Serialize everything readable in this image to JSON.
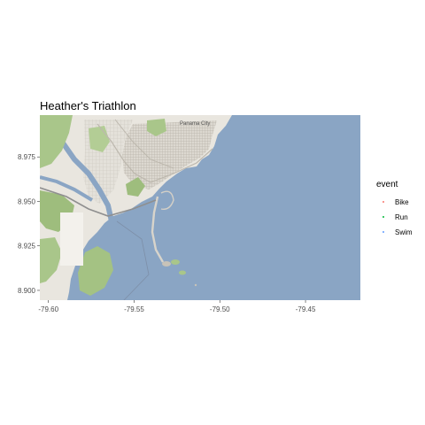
{
  "title": "Heather's Triathlon",
  "map": {
    "place_label": "Panama City",
    "water_color": "#8aa5c4",
    "land_color": "#e9e6df",
    "park_color": "#a9c68a"
  },
  "axes": {
    "x_ticks": [
      {
        "value": -79.6,
        "label": "-79.60"
      },
      {
        "value": -79.55,
        "label": "-79.55"
      },
      {
        "value": -79.5,
        "label": "-79.50"
      },
      {
        "value": -79.45,
        "label": "-79.45"
      }
    ],
    "y_ticks": [
      {
        "value": 8.975,
        "label": "8.975"
      },
      {
        "value": 8.95,
        "label": "8.950"
      },
      {
        "value": 8.925,
        "label": "8.925"
      },
      {
        "value": 8.9,
        "label": "8.900"
      }
    ],
    "xlim": [
      -79.605,
      -79.418
    ],
    "ylim": [
      8.8945,
      8.9985
    ]
  },
  "legend": {
    "title": "event",
    "items": [
      {
        "label": "Bike",
        "color": "#f8766d"
      },
      {
        "label": "Run",
        "color": "#00ba38"
      },
      {
        "label": "Swim",
        "color": "#619cff"
      }
    ]
  }
}
